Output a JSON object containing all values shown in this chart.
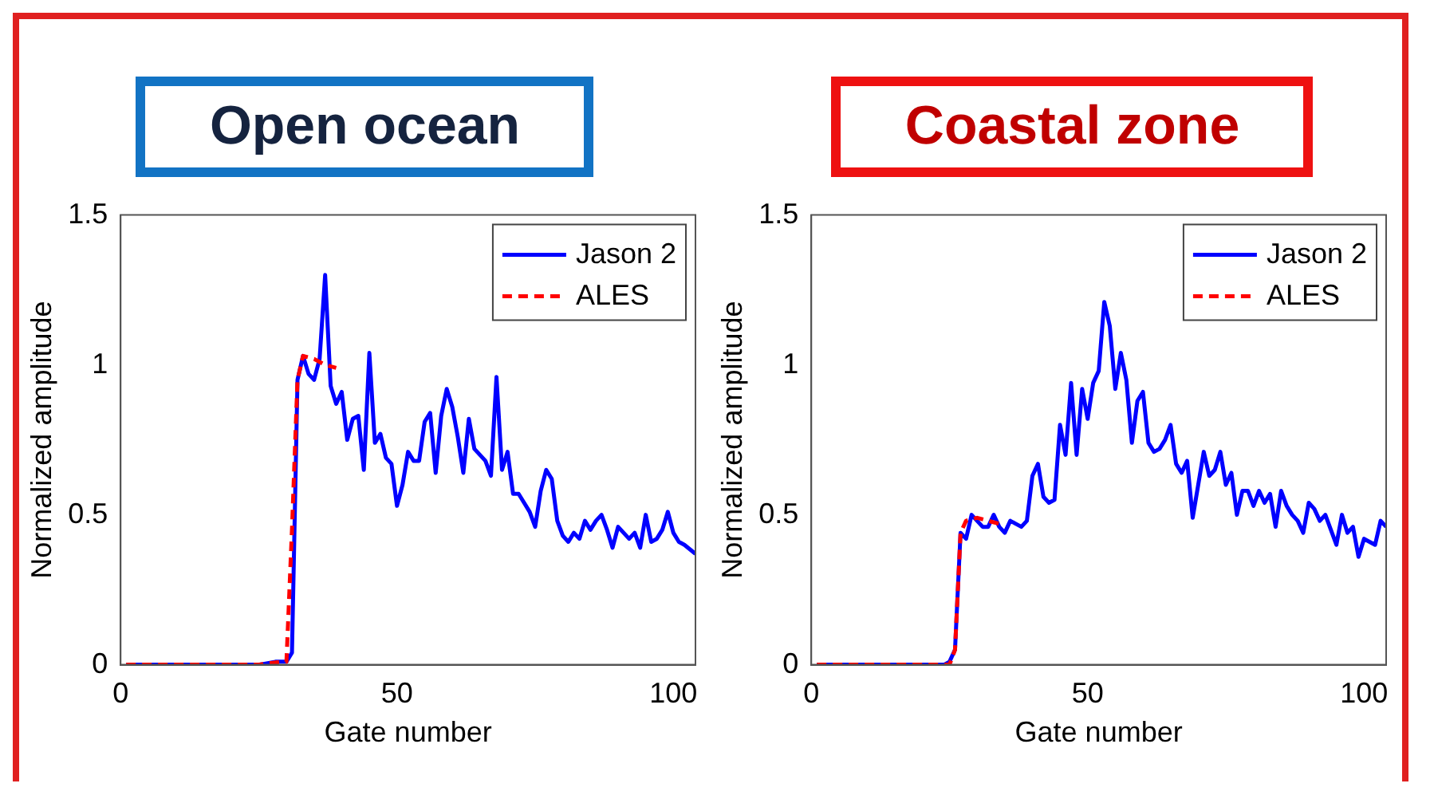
{
  "chart_data": [
    {
      "type": "line",
      "title": "Open ocean",
      "xlabel": "Gate number",
      "ylabel": "Normalized amplitude",
      "xlim": [
        0,
        104
      ],
      "xticks": [
        0,
        50,
        100
      ],
      "ylim": [
        0,
        1.5
      ],
      "yticks": [
        0,
        0.5,
        1,
        1.5
      ],
      "grid": false,
      "legend": "top right",
      "marker": "none",
      "series": [
        {
          "name": "Jason 2",
          "color": "#0000ff",
          "line_style": "solid",
          "x": [
            1,
            10,
            20,
            25,
            28,
            29,
            30,
            31,
            32,
            33,
            34,
            35,
            36,
            37,
            38,
            39,
            40,
            41,
            42,
            43,
            44,
            45,
            46,
            47,
            48,
            49,
            50,
            51,
            52,
            53,
            54,
            55,
            56,
            57,
            58,
            59,
            60,
            61,
            62,
            63,
            64,
            65,
            66,
            67,
            68,
            69,
            70,
            71,
            72,
            73,
            74,
            75,
            76,
            77,
            78,
            79,
            80,
            81,
            82,
            83,
            84,
            85,
            86,
            87,
            88,
            89,
            90,
            91,
            92,
            93,
            94,
            95,
            96,
            97,
            98,
            99,
            100,
            101,
            102,
            104
          ],
          "values": [
            0,
            0,
            0,
            0,
            0.01,
            0.01,
            0.01,
            0.04,
            0.95,
            1.03,
            0.97,
            0.95,
            1.02,
            1.3,
            0.93,
            0.87,
            0.91,
            0.75,
            0.82,
            0.83,
            0.65,
            1.04,
            0.74,
            0.77,
            0.69,
            0.67,
            0.53,
            0.6,
            0.71,
            0.68,
            0.68,
            0.81,
            0.84,
            0.64,
            0.83,
            0.92,
            0.86,
            0.76,
            0.64,
            0.82,
            0.72,
            0.7,
            0.68,
            0.63,
            0.96,
            0.65,
            0.71,
            0.57,
            0.57,
            0.54,
            0.51,
            0.46,
            0.58,
            0.65,
            0.62,
            0.48,
            0.43,
            0.41,
            0.44,
            0.42,
            0.48,
            0.45,
            0.48,
            0.5,
            0.45,
            0.39,
            0.46,
            0.44,
            0.42,
            0.44,
            0.39,
            0.5,
            0.41,
            0.42,
            0.45,
            0.51,
            0.44,
            0.41,
            0.4,
            0.37
          ]
        },
        {
          "name": "ALES",
          "color": "#ff0000",
          "line_style": "dashed",
          "x": [
            1,
            10,
            20,
            25,
            29,
            30,
            31,
            32,
            33,
            35,
            37,
            39
          ],
          "values": [
            0,
            0,
            0,
            0,
            0.01,
            0.01,
            0.45,
            0.95,
            1.03,
            1.02,
            1.0,
            0.99
          ]
        }
      ]
    },
    {
      "type": "line",
      "title": "Coastal zone",
      "xlabel": "Gate number",
      "ylabel": "Normalized amplitude",
      "xlim": [
        0,
        104
      ],
      "xticks": [
        0,
        50,
        100
      ],
      "ylim": [
        0,
        1.5
      ],
      "yticks": [
        0,
        0.5,
        1,
        1.5
      ],
      "grid": false,
      "legend": "top right",
      "marker": "none",
      "series": [
        {
          "name": "Jason 2",
          "color": "#0000ff",
          "line_style": "solid",
          "x": [
            1,
            10,
            20,
            24,
            25,
            26,
            27,
            28,
            29,
            30,
            31,
            32,
            33,
            34,
            35,
            36,
            37,
            38,
            39,
            40,
            41,
            42,
            43,
            44,
            45,
            46,
            47,
            48,
            49,
            50,
            51,
            52,
            53,
            54,
            55,
            56,
            57,
            58,
            59,
            60,
            61,
            62,
            63,
            64,
            65,
            66,
            67,
            68,
            69,
            70,
            71,
            72,
            73,
            74,
            75,
            76,
            77,
            78,
            79,
            80,
            81,
            82,
            83,
            84,
            85,
            86,
            87,
            88,
            89,
            90,
            91,
            92,
            93,
            94,
            95,
            96,
            97,
            98,
            99,
            100,
            101,
            102,
            103,
            104
          ],
          "values": [
            0,
            0,
            0,
            0,
            0.01,
            0.05,
            0.44,
            0.42,
            0.5,
            0.48,
            0.46,
            0.46,
            0.5,
            0.46,
            0.44,
            0.48,
            0.47,
            0.46,
            0.48,
            0.63,
            0.67,
            0.56,
            0.54,
            0.55,
            0.8,
            0.7,
            0.94,
            0.7,
            0.92,
            0.82,
            0.94,
            0.98,
            1.21,
            1.13,
            0.92,
            1.04,
            0.95,
            0.74,
            0.88,
            0.91,
            0.74,
            0.71,
            0.72,
            0.75,
            0.8,
            0.67,
            0.64,
            0.68,
            0.49,
            0.6,
            0.71,
            0.63,
            0.65,
            0.71,
            0.6,
            0.64,
            0.5,
            0.58,
            0.58,
            0.53,
            0.58,
            0.54,
            0.57,
            0.46,
            0.58,
            0.53,
            0.5,
            0.48,
            0.44,
            0.54,
            0.52,
            0.48,
            0.5,
            0.45,
            0.4,
            0.5,
            0.44,
            0.46,
            0.36,
            0.42,
            0.41,
            0.4,
            0.48,
            0.46
          ]
        },
        {
          "name": "ALES",
          "color": "#ff0000",
          "line_style": "dashed",
          "x": [
            1,
            10,
            20,
            25,
            26,
            27,
            28,
            30,
            32,
            34
          ],
          "values": [
            0,
            0,
            0,
            0,
            0.05,
            0.44,
            0.48,
            0.49,
            0.48,
            0.47
          ]
        }
      ]
    }
  ]
}
